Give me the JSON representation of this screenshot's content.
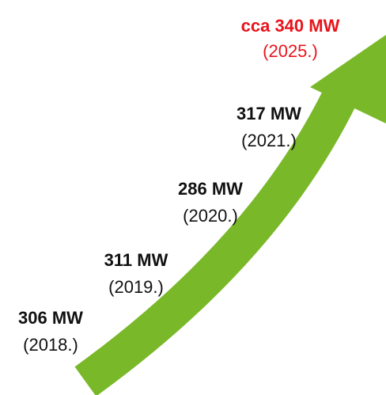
{
  "items": [
    {
      "value": "306 MW",
      "year": "(2018.)"
    },
    {
      "value": "311 MW",
      "year": "(2019.)"
    },
    {
      "value": "286 MW",
      "year": "(2020.)"
    },
    {
      "value": "317 MW",
      "year": "(2021.)"
    },
    {
      "value": "cca 340 MW",
      "year": "(2025.)"
    }
  ]
}
